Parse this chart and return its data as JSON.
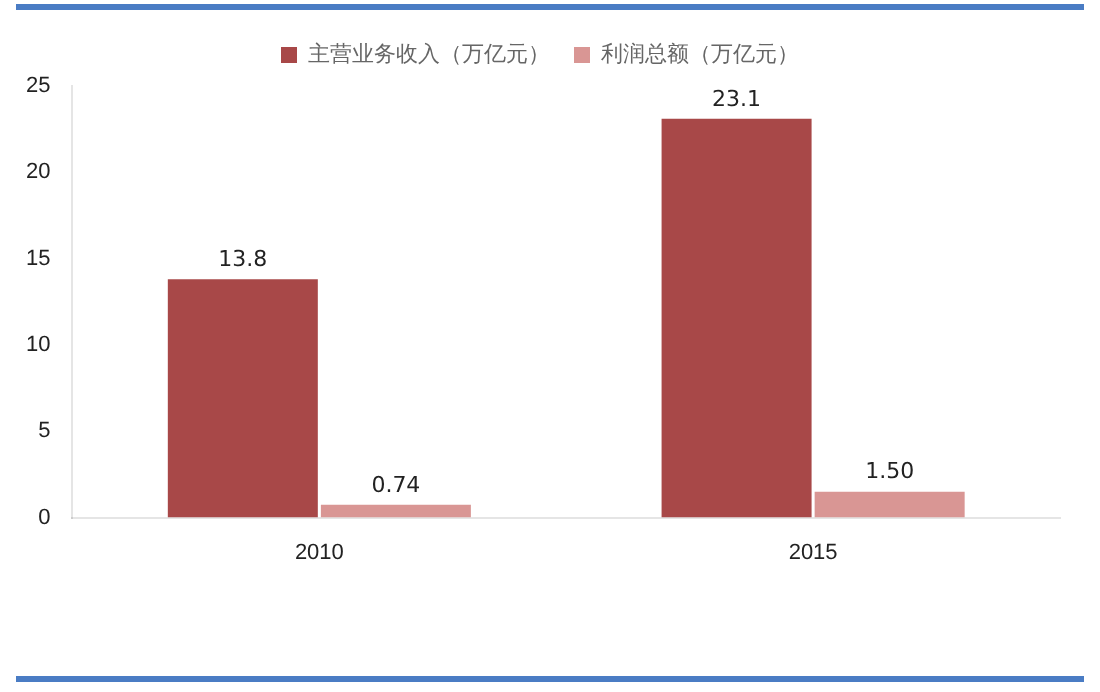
{
  "chart_data": {
    "type": "bar",
    "categories": [
      "2010",
      "2015"
    ],
    "series": [
      {
        "name": "主营业务收入（万亿元）",
        "color": "#a84848",
        "values": [
          13.8,
          23.1
        ],
        "value_labels": [
          "13.8",
          "23.1"
        ]
      },
      {
        "name": "利润总额（万亿元）",
        "color": "#d99694",
        "values": [
          0.74,
          1.5
        ],
        "value_labels": [
          "0.74",
          "1.50"
        ]
      }
    ],
    "ylim": [
      0,
      25
    ],
    "yticks": [
      0,
      5,
      10,
      15,
      20,
      25
    ],
    "grid": false,
    "legend": "top"
  }
}
